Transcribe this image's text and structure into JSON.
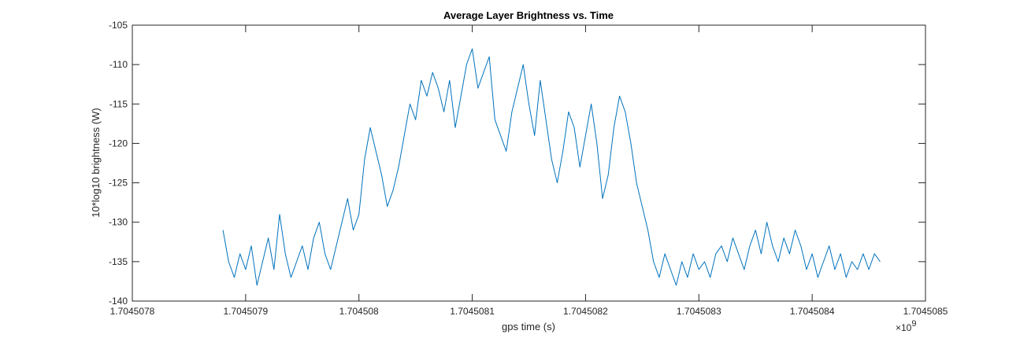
{
  "chart_data": {
    "type": "line",
    "title": "Average Layer Brightness vs. Time",
    "xlabel": "gps time (s)",
    "ylabel": "10*log10 brightness (W)",
    "x_multiplier": "×10",
    "x_multiplier_exp": "9",
    "xlim": [
      1.7045078,
      1.7045085
    ],
    "ylim": [
      -140,
      -105
    ],
    "xticks": [
      1.7045078,
      1.7045079,
      1.704508,
      1.7045081,
      1.7045082,
      1.7045083,
      1.7045084,
      1.7045085
    ],
    "xtick_labels": [
      "1.7045078",
      "1.7045079",
      "1.704508",
      "1.7045081",
      "1.7045082",
      "1.7045083",
      "1.7045084",
      "1.7045085"
    ],
    "yticks": [
      -105,
      -110,
      -115,
      -120,
      -125,
      -130,
      -135,
      -140
    ],
    "ytick_labels": [
      "-105",
      "-110",
      "-115",
      "-120",
      "-125",
      "-130",
      "-135",
      "-140"
    ],
    "grid": false,
    "line_color": "#0072BD",
    "series": [
      {
        "x": [
          1.70450788,
          1.704507885,
          1.70450789,
          1.704507895,
          1.7045079,
          1.704507905,
          1.70450791,
          1.704507915,
          1.70450792,
          1.704507925,
          1.70450793,
          1.704507935,
          1.70450794,
          1.704507945,
          1.70450795,
          1.704507955,
          1.70450796,
          1.704507965,
          1.70450797,
          1.704507975,
          1.70450798,
          1.704507985,
          1.70450799,
          1.704507995,
          1.704508,
          1.704508005,
          1.70450801,
          1.704508015,
          1.70450802,
          1.704508025,
          1.70450803,
          1.704508035,
          1.70450804,
          1.704508045,
          1.70450805,
          1.704508055,
          1.70450806,
          1.704508065,
          1.70450807,
          1.704508075,
          1.70450808,
          1.704508085,
          1.70450809,
          1.704508095,
          1.7045081,
          1.704508105,
          1.70450811,
          1.704508115,
          1.70450812,
          1.704508125,
          1.70450813,
          1.704508135,
          1.70450814,
          1.704508145,
          1.70450815,
          1.704508155,
          1.70450816,
          1.704508165,
          1.70450817,
          1.704508175,
          1.70450818,
          1.704508185,
          1.70450819,
          1.704508195,
          1.7045082,
          1.704508205,
          1.70450821,
          1.704508215,
          1.70450822,
          1.704508225,
          1.70450823,
          1.704508235,
          1.70450824,
          1.704508245,
          1.70450825,
          1.704508255,
          1.70450826,
          1.704508265,
          1.70450827,
          1.704508275,
          1.70450828,
          1.704508285,
          1.70450829,
          1.704508295,
          1.7045083,
          1.704508305,
          1.70450831,
          1.704508315,
          1.70450832,
          1.704508325,
          1.70450833,
          1.704508335,
          1.70450834,
          1.704508345,
          1.70450835,
          1.704508355,
          1.70450836,
          1.704508365,
          1.70450837,
          1.704508375,
          1.70450838,
          1.704508385,
          1.70450839,
          1.704508395,
          1.7045084,
          1.704508405,
          1.70450841,
          1.704508415,
          1.70450842,
          1.704508425,
          1.70450843,
          1.704508435,
          1.70450844,
          1.704508445,
          1.70450845,
          1.704508455,
          1.70450846
        ],
        "values": [
          -131,
          -135,
          -137,
          -134,
          -136,
          -133,
          -138,
          -135,
          -132,
          -136,
          -129,
          -134,
          -137,
          -135,
          -133,
          -136,
          -132,
          -130,
          -134,
          -136,
          -133,
          -130,
          -127,
          -131,
          -129,
          -122,
          -118,
          -121,
          -124,
          -128,
          -126,
          -123,
          -119,
          -115,
          -117,
          -112,
          -114,
          -111,
          -113,
          -116,
          -112,
          -118,
          -114,
          -110,
          -108,
          -113,
          -111,
          -109,
          -117,
          -119,
          -121,
          -116,
          -113,
          -110,
          -115,
          -119,
          -112,
          -117,
          -122,
          -125,
          -121,
          -116,
          -118,
          -123,
          -119,
          -115,
          -120,
          -127,
          -124,
          -118,
          -114,
          -116,
          -120,
          -125,
          -128,
          -131,
          -135,
          -137,
          -134,
          -136,
          -138,
          -135,
          -137,
          -134,
          -136,
          -135,
          -137,
          -134,
          -133,
          -135,
          -132,
          -134,
          -136,
          -133,
          -131,
          -134,
          -130,
          -133,
          -135,
          -132,
          -134,
          -131,
          -133,
          -136,
          -134,
          -137,
          -135,
          -133,
          -136,
          -134,
          -137,
          -135,
          -136,
          -134,
          -136,
          -134,
          -135
        ]
      }
    ]
  }
}
